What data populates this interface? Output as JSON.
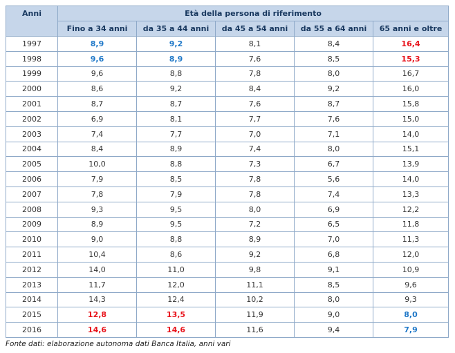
{
  "header": {
    "corner": "Anni",
    "group": "Età della persona di riferimento",
    "columns": [
      "Fino a 34 anni",
      "da 35 a 44 anni",
      "da 45 a 54 anni",
      "da 55 a 64 anni",
      "65 anni e oltre"
    ]
  },
  "table": {
    "rows": [
      [
        "1997",
        "8,9",
        "9,2",
        "8,1",
        "8,4",
        "16,4"
      ],
      [
        "1998",
        "9,6",
        "8,9",
        "7,6",
        "8,5",
        "15,3"
      ],
      [
        "1999",
        "9,6",
        "8,8",
        "7,8",
        "8,0",
        "16,7"
      ],
      [
        "2000",
        "8,6",
        "9,2",
        "8,4",
        "9,2",
        "16,0"
      ],
      [
        "2001",
        "8,7",
        "8,7",
        "7,6",
        "8,7",
        "15,8"
      ],
      [
        "2002",
        "6,9",
        "8,1",
        "7,7",
        "7,6",
        "15,0"
      ],
      [
        "2003",
        "7,4",
        "7,7",
        "7,0",
        "7,1",
        "14,0"
      ],
      [
        "2004",
        "8,4",
        "8,9",
        "7,4",
        "8,0",
        "15,1"
      ],
      [
        "2005",
        "10,0",
        "8,8",
        "7,3",
        "6,7",
        "13,9"
      ],
      [
        "2006",
        "7,9",
        "8,5",
        "7,8",
        "5,6",
        "14,0"
      ],
      [
        "2007",
        "7,8",
        "7,9",
        "7,8",
        "7,4",
        "13,3"
      ],
      [
        "2008",
        "9,3",
        "9,5",
        "8,0",
        "6,9",
        "12,2"
      ],
      [
        "2009",
        "8,9",
        "9,5",
        "7,2",
        "6,5",
        "11,8"
      ],
      [
        "2010",
        "9,0",
        "8,8",
        "8,9",
        "7,0",
        "11,3"
      ],
      [
        "2011",
        "10,4",
        "8,6",
        "9,2",
        "6,8",
        "12,0"
      ],
      [
        "2012",
        "14,0",
        "11,0",
        "9,8",
        "9,1",
        "10,9"
      ],
      [
        "2013",
        "11,7",
        "12,0",
        "11,1",
        "8,5",
        "9,6"
      ],
      [
        "2014",
        "14,3",
        "12,4",
        "10,2",
        "8,0",
        "9,3"
      ],
      [
        "2015",
        "12,8",
        "13,5",
        "11,9",
        "9,0",
        "8,0"
      ],
      [
        "2016",
        "14,6",
        "14,6",
        "11,6",
        "9,4",
        "7,9"
      ]
    ],
    "highlights": [
      {
        "color": "#1f78c8",
        "cells": [
          [
            0,
            1
          ],
          [
            0,
            2
          ],
          [
            1,
            1
          ],
          [
            1,
            2
          ],
          [
            18,
            5
          ],
          [
            19,
            5
          ]
        ]
      },
      {
        "color": "#e8141c",
        "cells": [
          [
            0,
            5
          ],
          [
            1,
            5
          ],
          [
            18,
            1
          ],
          [
            18,
            2
          ],
          [
            19,
            1
          ],
          [
            19,
            2
          ]
        ]
      }
    ]
  },
  "footer": {
    "source": "Fonte dati: elaborazione autonoma dati Banca Italia, anni vari"
  }
}
